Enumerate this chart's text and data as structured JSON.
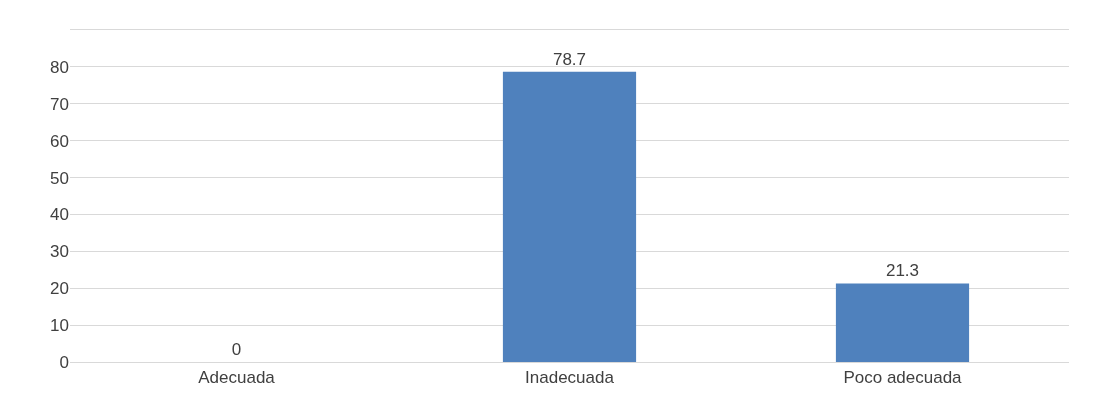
{
  "chart_data": {
    "type": "bar",
    "categories": [
      "Adecuada",
      "Inadecuada",
      "Poco adecuada"
    ],
    "values": [
      0,
      78.7,
      21.3
    ],
    "color": "#4f81bd",
    "ylim": [
      0,
      90
    ],
    "yticks": [
      0,
      10,
      20,
      30,
      40,
      50,
      60,
      70,
      80,
      {
        "value": 90,
        "label": null
      }
    ],
    "grid": "y",
    "data_labels": true
  }
}
